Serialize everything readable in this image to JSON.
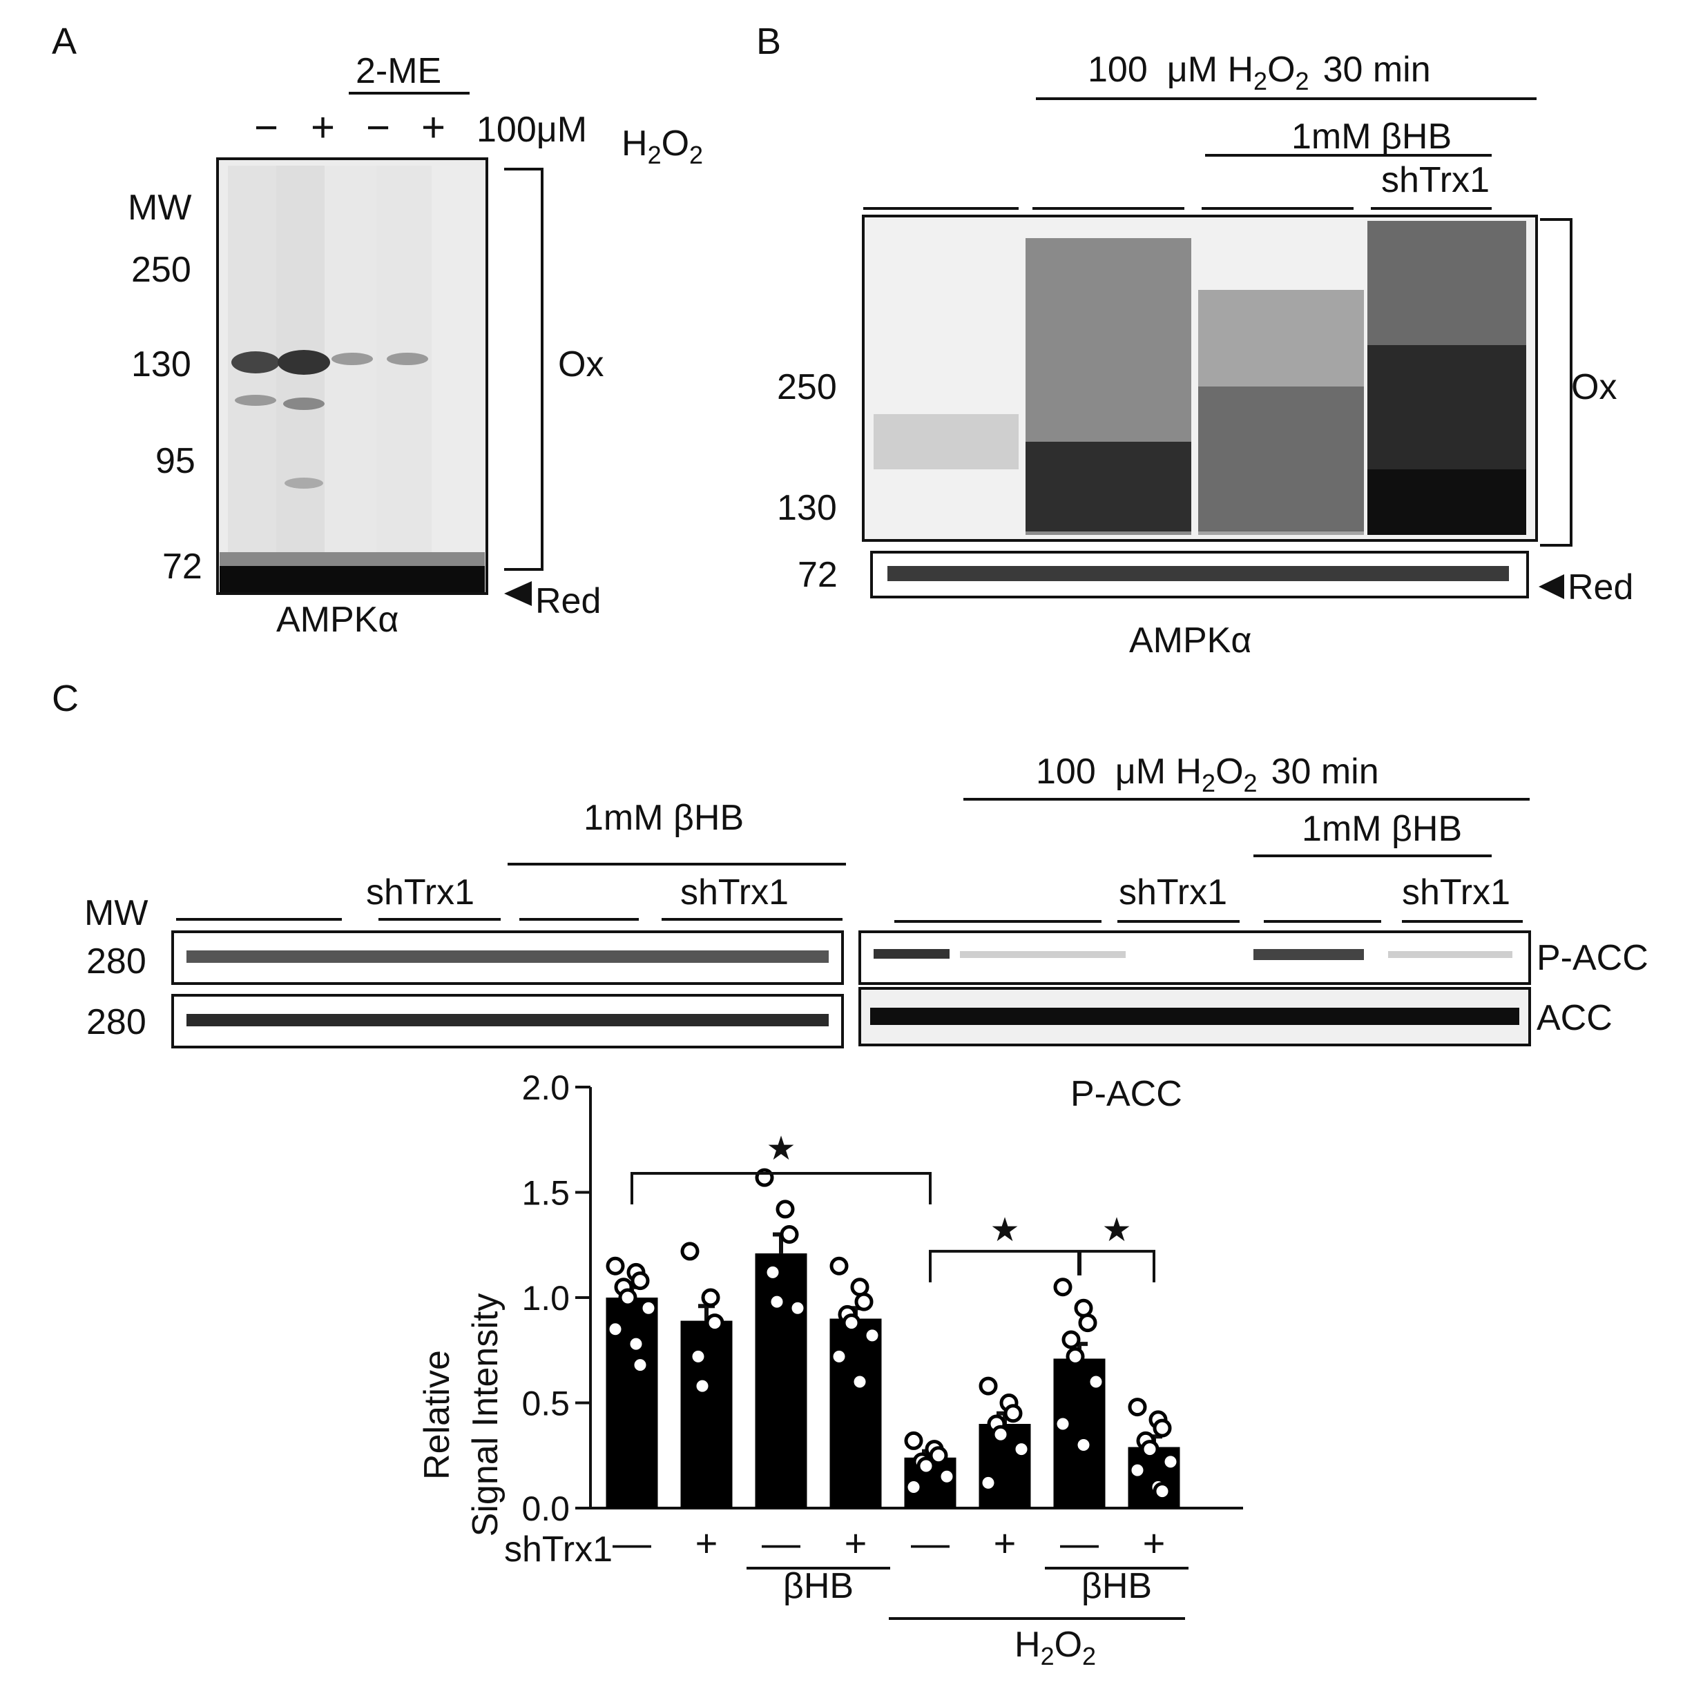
{
  "panels": {
    "A": {
      "letter": "A",
      "reducer": "2-ME",
      "treatment_prefix": "100μM",
      "treatment_base": "H",
      "treatment_sub1": "2",
      "treatment_mid": "O",
      "treatment_sub2": "2",
      "lane_signs": [
        "−",
        "+",
        "−",
        "+"
      ],
      "mw_header": "MW",
      "mw_markers": [
        "250",
        "130",
        "95",
        "72"
      ],
      "ox_label": "Ox",
      "red_label": "Red",
      "protein": "AMPKα"
    },
    "B": {
      "letter": "B",
      "treatment_prefix": "100",
      "treatment_unit": "μM H",
      "treatment_sub1": "2",
      "treatment_mid": "O",
      "treatment_sub2": "2",
      "treatment_suffix": "30 min",
      "bhb": "1mM βHB",
      "shtrx": "shTrx1",
      "mw_markers": [
        "250",
        "130",
        "72"
      ],
      "ox_label": "Ox",
      "red_label": "Red",
      "protein": "AMPKα"
    },
    "C": {
      "letter": "C",
      "mw_header": "MW",
      "left_bhb": "1mM βHB",
      "left_shtrx_1": "shTrx1",
      "left_shtrx_2": "shTrx1",
      "right_treatment_prefix": "100",
      "right_treatment_unit": "μM H",
      "right_treatment_sub1": "2",
      "right_treatment_mid": "O",
      "right_treatment_sub2": "2",
      "right_treatment_suffix": "30 min",
      "right_bhb": "1mM βHB",
      "right_shtrx_1": "shTrx1",
      "right_shtrx_2": "shTrx1",
      "blot_markers": [
        "280",
        "280"
      ],
      "blot_labels": [
        "P-ACC",
        "ACC"
      ]
    }
  },
  "chart_data": {
    "type": "bar",
    "title": "P-ACC",
    "ylabel_line1": "Relative",
    "ylabel_line2": "Signal Intensity",
    "ylim": [
      0,
      2.0
    ],
    "yticks": [
      "0.0",
      "0.5",
      "1.0",
      "1.5",
      "2.0"
    ],
    "categories": [
      "—",
      "+",
      "—",
      "+",
      "—",
      "+",
      "—",
      "+"
    ],
    "row_label": "shTrx1",
    "group_labels": [
      "βHB",
      "βHB"
    ],
    "h2o2_label_base": "H",
    "h2o2_sub1": "2",
    "h2o2_mid": "O",
    "h2o2_sub2": "2",
    "values": [
      1.0,
      0.89,
      1.21,
      0.9,
      0.24,
      0.4,
      0.71,
      0.29
    ],
    "errors": [
      0.05,
      0.07,
      0.09,
      0.05,
      0.03,
      0.05,
      0.07,
      0.05
    ],
    "points": [
      [
        1.15,
        1.12,
        1.08,
        1.05,
        1.0,
        0.95,
        0.85,
        0.78,
        0.68
      ],
      [
        1.22,
        1.0,
        0.88,
        0.72,
        0.58
      ],
      [
        1.57,
        1.42,
        1.3,
        1.12,
        0.98,
        0.95
      ],
      [
        1.15,
        1.05,
        0.98,
        0.92,
        0.88,
        0.82,
        0.72,
        0.6
      ],
      [
        0.32,
        0.28,
        0.25,
        0.22,
        0.2,
        0.15,
        0.1
      ],
      [
        0.58,
        0.5,
        0.45,
        0.4,
        0.35,
        0.28,
        0.12
      ],
      [
        1.05,
        0.95,
        0.88,
        0.8,
        0.72,
        0.6,
        0.4,
        0.3
      ],
      [
        0.48,
        0.42,
        0.38,
        0.32,
        0.28,
        0.22,
        0.18,
        0.1,
        0.08
      ]
    ],
    "significance": [
      "★",
      "★",
      "★"
    ],
    "colors": {
      "bar": "#000000",
      "point_fill": "#ffffff",
      "point_stroke": "#000000"
    }
  }
}
